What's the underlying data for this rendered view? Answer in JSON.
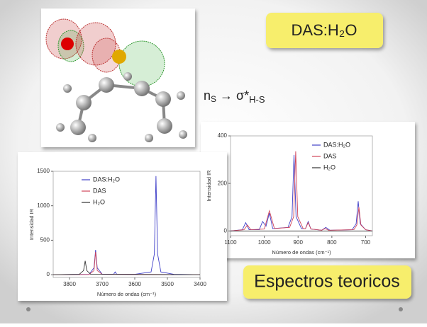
{
  "slide": {
    "title": "DAS:H₂O",
    "annotation": {
      "n": "n",
      "n_sub": "S",
      "arrow": " → ",
      "sigma": "σ*",
      "sigma_sub": "H-S"
    },
    "caption": "Espectros teoricos"
  },
  "chart_data": [
    {
      "type": "line",
      "y_label": "Intensidad IR",
      "x_label": "Número de ondas (cm⁻¹)",
      "xlim": [
        3850,
        3400
      ],
      "xticks": [
        3800,
        3700,
        3600,
        3500,
        3400
      ],
      "ylim": [
        -40,
        1500
      ],
      "yticks": [
        0,
        500,
        1000,
        1500
      ],
      "series": [
        {
          "name": "DAS:H₂O",
          "color": "#3f3fc8",
          "x": [
            3850,
            3740,
            3725,
            3720,
            3715,
            3700,
            3665,
            3660,
            3655,
            3600,
            3550,
            3540,
            3535,
            3530,
            3520,
            3480,
            3400
          ],
          "values": [
            0,
            5,
            100,
            360,
            100,
            8,
            5,
            40,
            5,
            5,
            40,
            300,
            1430,
            300,
            40,
            5,
            0
          ]
        },
        {
          "name": "DAS",
          "color": "#d0455a",
          "x": [
            3850,
            3740,
            3725,
            3720,
            3715,
            3700,
            3400
          ],
          "values": [
            0,
            3,
            60,
            330,
            60,
            5,
            0
          ]
        },
        {
          "name": "H₂O",
          "color": "#333333",
          "x": [
            3850,
            3770,
            3757,
            3752,
            3747,
            3735,
            3400
          ],
          "values": [
            0,
            5,
            60,
            200,
            60,
            5,
            0
          ]
        }
      ]
    },
    {
      "type": "line",
      "y_label": "Intensidad IR",
      "x_label": "Número de ondas (cm⁻¹)",
      "xlim": [
        1100,
        680
      ],
      "xticks": [
        1100,
        1000,
        900,
        800,
        700
      ],
      "ylim": [
        -20,
        400
      ],
      "yticks": [
        0,
        200,
        400
      ],
      "series": [
        {
          "name": "DAS:H₂O",
          "color": "#3f3fc8",
          "x": [
            1100,
            1065,
            1055,
            1045,
            1015,
            1005,
            995,
            985,
            975,
            930,
            918,
            912,
            906,
            890,
            878,
            870,
            862,
            830,
            818,
            806,
            740,
            728,
            722,
            716,
            700,
            680
          ],
          "values": [
            0,
            5,
            35,
            5,
            5,
            40,
            20,
            75,
            10,
            15,
            60,
            320,
            60,
            10,
            10,
            40,
            8,
            3,
            15,
            3,
            5,
            30,
            125,
            30,
            5,
            0
          ]
        },
        {
          "name": "DAS",
          "color": "#d0455a",
          "x": [
            1100,
            1060,
            1050,
            1040,
            1000,
            985,
            970,
            925,
            913,
            907,
            901,
            885,
            878,
            870,
            862,
            830,
            820,
            810,
            735,
            726,
            720,
            714,
            700,
            680
          ],
          "values": [
            0,
            5,
            25,
            5,
            8,
            85,
            10,
            15,
            60,
            335,
            60,
            10,
            10,
            35,
            8,
            3,
            10,
            3,
            5,
            25,
            100,
            25,
            5,
            0
          ]
        },
        {
          "name": "H₂O",
          "color": "#333333",
          "x": [
            1100,
            680
          ],
          "values": [
            0,
            0
          ]
        }
      ]
    }
  ]
}
